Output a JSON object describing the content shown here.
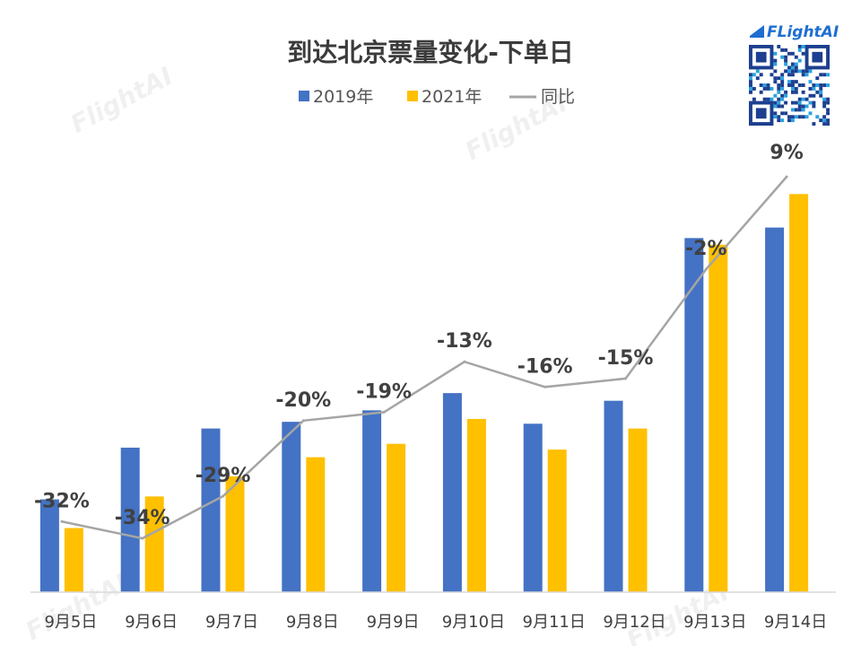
{
  "brand": {
    "logo_text": "FLightAI",
    "accent_color": "#1f6fd1",
    "qr_icon": "qr-code-icon"
  },
  "watermark_text": "FlightAI",
  "chart_data": {
    "type": "bar",
    "title": "到达北京票量变化-下单日",
    "xlabel": "",
    "ylabel": "",
    "categories": [
      "9月5日",
      "9月6日",
      "9月7日",
      "9月8日",
      "9月9日",
      "9月10日",
      "9月11日",
      "9月12日",
      "9月13日",
      "9月14日"
    ],
    "series": [
      {
        "name": "2019年",
        "kind": "bar",
        "color": "#4472c4",
        "values": [
          97,
          151,
          171,
          178,
          190,
          208,
          176,
          200,
          370,
          381
        ]
      },
      {
        "name": "2021年",
        "kind": "bar",
        "color": "#ffc000",
        "values": [
          67,
          100,
          121,
          141,
          155,
          181,
          149,
          171,
          363,
          416
        ]
      },
      {
        "name": "同比",
        "kind": "line",
        "color": "#a5a5a5",
        "values": [
          -32,
          -34,
          -29,
          -20,
          -19,
          -13,
          -16,
          -15,
          -2,
          9
        ],
        "labels": [
          "-32%",
          "-34%",
          "-29%",
          "-20%",
          "-19%",
          "-13%",
          "-16%",
          "-15%",
          "-2%",
          "9%"
        ]
      }
    ],
    "ylim": [
      0,
      420
    ],
    "y2lim": [
      -40,
      12
    ],
    "grid": false,
    "legend_position": "top-center"
  }
}
